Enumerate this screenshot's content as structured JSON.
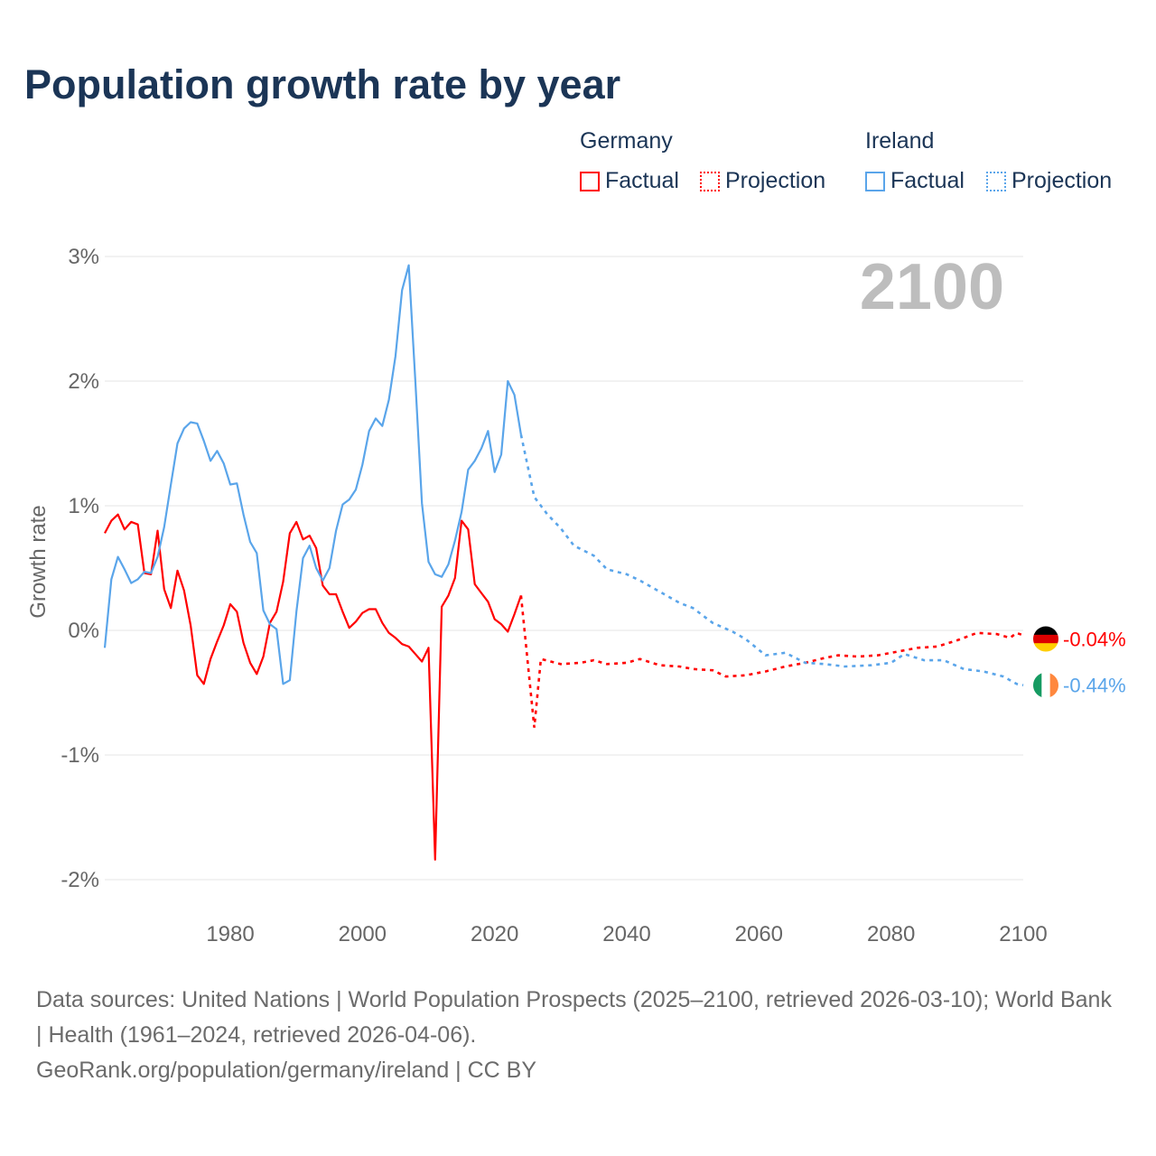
{
  "title": "Population growth rate by year",
  "legend": {
    "groups": [
      {
        "name": "Germany",
        "factual": "Factual",
        "projection": "Projection",
        "color": "#ff0000"
      },
      {
        "name": "Ireland",
        "factual": "Factual",
        "projection": "Projection",
        "color": "#5aa5ea"
      }
    ]
  },
  "year_label": "2100",
  "footer": {
    "line1": "Data sources: United Nations | World Population Prospects (2025–2100, retrieved 2026-03-10); World Bank | Health (1961–2024, retrieved 2026-04-06).",
    "line2": "GeoRank.org/population/germany/ireland | CC BY"
  },
  "chart_data": {
    "type": "line",
    "title": "Population growth rate by year",
    "xlabel": "",
    "ylabel": "Growth rate",
    "xlim": [
      1961,
      2100
    ],
    "ylim": [
      -2,
      3
    ],
    "x_ticks": [
      1980,
      2000,
      2020,
      2040,
      2060,
      2080,
      2100
    ],
    "y_ticks": [
      {
        "v": 3,
        "label": "3%"
      },
      {
        "v": 2,
        "label": "2%"
      },
      {
        "v": 1,
        "label": "1%"
      },
      {
        "v": 0,
        "label": "0%"
      },
      {
        "v": -1,
        "label": "-1%"
      },
      {
        "v": -2,
        "label": "-2%"
      }
    ],
    "grid": true,
    "legend_position": "top-right",
    "series": [
      {
        "name": "Germany",
        "color": "#ff0000",
        "end_label": "-0.04%",
        "factual": {
          "x": [
            1961,
            1962,
            1963,
            1964,
            1965,
            1966,
            1967,
            1968,
            1969,
            1970,
            1971,
            1972,
            1973,
            1974,
            1975,
            1976,
            1977,
            1978,
            1979,
            1980,
            1981,
            1982,
            1983,
            1984,
            1985,
            1986,
            1987,
            1988,
            1989,
            1990,
            1991,
            1992,
            1993,
            1994,
            1995,
            1996,
            1997,
            1998,
            1999,
            2000,
            2001,
            2002,
            2003,
            2004,
            2005,
            2006,
            2007,
            2008,
            2009,
            2010,
            2011,
            2012,
            2013,
            2014,
            2015,
            2016,
            2017,
            2018,
            2019,
            2020,
            2021,
            2022,
            2023,
            2024
          ],
          "y": [
            0.78,
            0.88,
            0.93,
            0.81,
            0.87,
            0.85,
            0.46,
            0.45,
            0.8,
            0.33,
            0.18,
            0.48,
            0.32,
            0.04,
            -0.36,
            -0.43,
            -0.23,
            -0.09,
            0.04,
            0.21,
            0.15,
            -0.1,
            -0.26,
            -0.35,
            -0.21,
            0.06,
            0.15,
            0.39,
            0.78,
            0.87,
            0.73,
            0.76,
            0.66,
            0.36,
            0.29,
            0.29,
            0.15,
            0.02,
            0.07,
            0.14,
            0.17,
            0.17,
            0.06,
            -0.02,
            -0.06,
            -0.11,
            -0.13,
            -0.19,
            -0.25,
            -0.14,
            -1.84,
            0.19,
            0.28,
            0.42,
            0.88,
            0.81,
            0.37,
            0.3,
            0.23,
            0.09,
            0.05,
            -0.01,
            0.13,
            0.28
          ]
        },
        "projection": {
          "x": [
            2024,
            2026,
            2027,
            2030,
            2033,
            2035,
            2037,
            2040,
            2042,
            2045,
            2048,
            2050,
            2053,
            2055,
            2058,
            2061,
            2064,
            2067,
            2070,
            2072,
            2075,
            2078,
            2081,
            2084,
            2087,
            2090,
            2093,
            2096,
            2098,
            2099,
            2100
          ],
          "y": [
            0.28,
            -0.78,
            -0.23,
            -0.27,
            -0.26,
            -0.24,
            -0.27,
            -0.26,
            -0.23,
            -0.28,
            -0.29,
            -0.31,
            -0.32,
            -0.37,
            -0.36,
            -0.33,
            -0.29,
            -0.26,
            -0.22,
            -0.2,
            -0.21,
            -0.2,
            -0.17,
            -0.14,
            -0.13,
            -0.08,
            -0.02,
            -0.03,
            -0.06,
            -0.02,
            -0.04
          ]
        }
      },
      {
        "name": "Ireland",
        "color": "#5aa5ea",
        "end_label": "-0.44%",
        "factual": {
          "x": [
            1961,
            1962,
            1963,
            1964,
            1965,
            1966,
            1967,
            1968,
            1969,
            1970,
            1971,
            1972,
            1973,
            1974,
            1975,
            1976,
            1977,
            1978,
            1979,
            1980,
            1981,
            1982,
            1983,
            1984,
            1985,
            1986,
            1987,
            1988,
            1989,
            1990,
            1991,
            1992,
            1993,
            1994,
            1995,
            1996,
            1997,
            1998,
            1999,
            2000,
            2001,
            2002,
            2003,
            2004,
            2005,
            2006,
            2007,
            2008,
            2009,
            2010,
            2011,
            2012,
            2013,
            2014,
            2015,
            2016,
            2017,
            2018,
            2019,
            2020,
            2021,
            2022,
            2023,
            2024
          ],
          "y": [
            -0.14,
            0.41,
            0.59,
            0.49,
            0.38,
            0.41,
            0.47,
            0.46,
            0.59,
            0.83,
            1.17,
            1.5,
            1.62,
            1.67,
            1.66,
            1.52,
            1.36,
            1.44,
            1.34,
            1.17,
            1.18,
            0.93,
            0.71,
            0.62,
            0.16,
            0.05,
            0.01,
            -0.43,
            -0.4,
            0.15,
            0.58,
            0.68,
            0.5,
            0.4,
            0.5,
            0.8,
            1.01,
            1.05,
            1.13,
            1.33,
            1.6,
            1.7,
            1.64,
            1.85,
            2.2,
            2.73,
            2.93,
            2.0,
            1.02,
            0.55,
            0.45,
            0.43,
            0.53,
            0.72,
            0.95,
            1.29,
            1.36,
            1.46,
            1.6,
            1.27,
            1.41,
            2.0,
            1.89,
            1.57
          ]
        },
        "projection": {
          "x": [
            2024,
            2026,
            2028,
            2030,
            2032,
            2035,
            2037,
            2040,
            2042,
            2045,
            2048,
            2050,
            2053,
            2056,
            2058,
            2061,
            2064,
            2067,
            2070,
            2073,
            2077,
            2080,
            2082,
            2085,
            2088,
            2091,
            2094,
            2097,
            2099,
            2100
          ],
          "y": [
            1.57,
            1.07,
            0.93,
            0.82,
            0.68,
            0.6,
            0.49,
            0.45,
            0.4,
            0.31,
            0.22,
            0.18,
            0.06,
            -0.01,
            -0.07,
            -0.2,
            -0.18,
            -0.26,
            -0.27,
            -0.29,
            -0.28,
            -0.26,
            -0.19,
            -0.24,
            -0.24,
            -0.31,
            -0.33,
            -0.37,
            -0.43,
            -0.44
          ]
        }
      }
    ]
  }
}
